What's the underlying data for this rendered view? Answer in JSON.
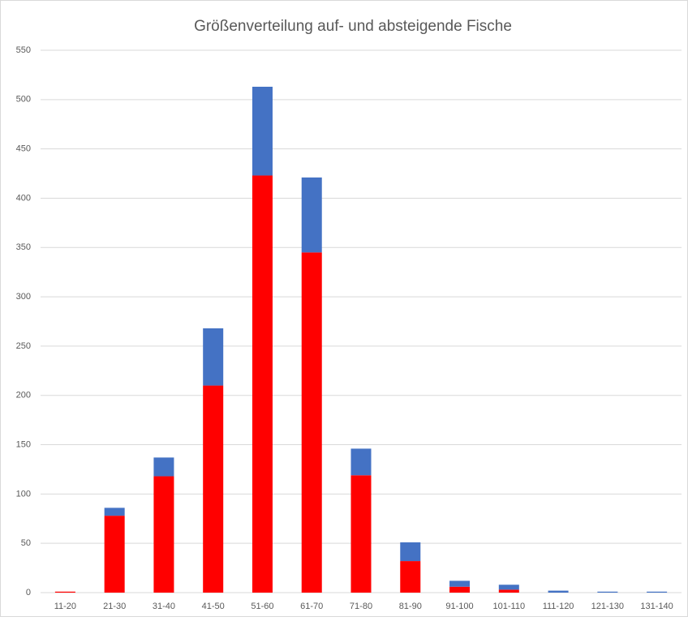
{
  "chart_data": {
    "type": "stacked_bar",
    "title": "Größenverteilung auf- und absteigende Fische",
    "categories": [
      "11-20",
      "21-30",
      "31-40",
      "41-50",
      "51-60",
      "61-70",
      "71-80",
      "81-90",
      "91-100",
      "101-110",
      "111-120",
      "121-130",
      "131-140"
    ],
    "series": [
      {
        "color": "#ff0000",
        "values": [
          1,
          78,
          118,
          210,
          423,
          345,
          119,
          32,
          6,
          3,
          0,
          0,
          0
        ]
      },
      {
        "color": "#4472c4",
        "values": [
          0,
          8,
          19,
          58,
          90,
          76,
          27,
          19,
          6,
          5,
          2,
          1,
          1
        ]
      }
    ],
    "ylim": [
      0,
      550
    ],
    "yticks": [
      0,
      50,
      100,
      150,
      200,
      250,
      300,
      350,
      400,
      450,
      500,
      550
    ],
    "grid": true
  }
}
